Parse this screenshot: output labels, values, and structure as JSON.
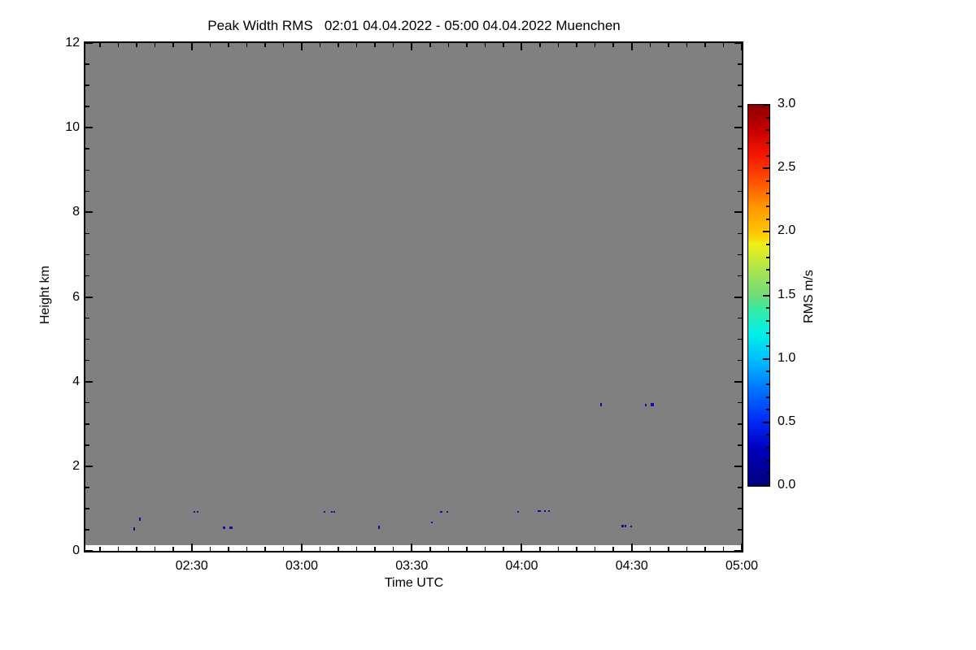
{
  "title": "Peak Width RMS   02:01 04.04.2022 - 05:00 04.04.2022 Muenchen",
  "chart_data": {
    "type": "heatmap",
    "title": "Peak Width RMS   02:01 04.04.2022 - 05:00 04.04.2022 Muenchen",
    "station": "Muenchen",
    "time_span": {
      "start": "02:01 04.04.2022",
      "end": "05:00 04.04.2022"
    },
    "xlabel": "Time UTC",
    "ylabel": "Height km",
    "x_axis": {
      "unit": "UTC time",
      "range_minutes": [
        121,
        300
      ],
      "major_ticks": [
        {
          "t_min": 150,
          "label": "02:30"
        },
        {
          "t_min": 180,
          "label": "03:00"
        },
        {
          "t_min": 210,
          "label": "03:30"
        },
        {
          "t_min": 240,
          "label": "04:00"
        },
        {
          "t_min": 270,
          "label": "04:30"
        },
        {
          "t_min": 300,
          "label": "05:00"
        }
      ],
      "minor_step_minutes": 5,
      "grid": false
    },
    "y_axis": {
      "unit": "km",
      "range": [
        0,
        12
      ],
      "major_ticks": [
        {
          "v": 0,
          "label": "0"
        },
        {
          "v": 2,
          "label": "2"
        },
        {
          "v": 4,
          "label": "4"
        },
        {
          "v": 6,
          "label": "6"
        },
        {
          "v": 8,
          "label": "8"
        },
        {
          "v": 10,
          "label": "10"
        },
        {
          "v": 12,
          "label": "12"
        }
      ],
      "minor_step": 0.5,
      "grid": false
    },
    "no_data_color": "#808080",
    "data_region_min_height_km": 0.13,
    "point_color": "#10109e",
    "point_value_mps_approx": 0.1,
    "points": [
      {
        "time": "02:14",
        "t_min": 134.3,
        "height_km": 0.51,
        "w": 2,
        "s": 4
      },
      {
        "time": "02:16",
        "t_min": 135.8,
        "height_km": 0.74,
        "w": 2,
        "s": 4
      },
      {
        "time": "02:31",
        "t_min": 150.7,
        "height_km": 0.93,
        "w": 2,
        "s": 2
      },
      {
        "time": "02:32",
        "t_min": 151.5,
        "height_km": 0.92,
        "w": 2,
        "s": 2
      },
      {
        "time": "02:39",
        "t_min": 158.8,
        "height_km": 0.55,
        "w": 3,
        "s": 3
      },
      {
        "time": "02:41",
        "t_min": 160.6,
        "height_km": 0.55,
        "w": 4,
        "s": 3
      },
      {
        "time": "03:06",
        "t_min": 186.2,
        "height_km": 0.92,
        "w": 2,
        "s": 2
      },
      {
        "time": "03:08",
        "t_min": 188.2,
        "height_km": 0.92,
        "w": 2,
        "s": 2
      },
      {
        "time": "03:09",
        "t_min": 188.9,
        "height_km": 0.92,
        "w": 2,
        "s": 2
      },
      {
        "time": "03:21",
        "t_min": 201.1,
        "height_km": 0.55,
        "w": 2,
        "s": 4
      },
      {
        "time": "03:36",
        "t_min": 215.6,
        "height_km": 0.67,
        "w": 2,
        "s": 2
      },
      {
        "time": "03:38",
        "t_min": 218.0,
        "height_km": 0.92,
        "w": 3,
        "s": 2
      },
      {
        "time": "03:40",
        "t_min": 219.7,
        "height_km": 0.92,
        "w": 2,
        "s": 2
      },
      {
        "time": "03:59",
        "t_min": 238.9,
        "height_km": 0.92,
        "w": 2,
        "s": 2
      },
      {
        "time": "04:05",
        "t_min": 244.8,
        "height_km": 0.94,
        "w": 4,
        "s": 2
      },
      {
        "time": "04:06",
        "t_min": 246.4,
        "height_km": 0.94,
        "w": 2,
        "s": 2
      },
      {
        "time": "04:07",
        "t_min": 247.4,
        "height_km": 0.94,
        "w": 2,
        "s": 2
      },
      {
        "time": "04:22",
        "t_min": 261.7,
        "height_km": 3.46,
        "w": 2,
        "s": 4
      },
      {
        "time": "04:28",
        "t_min": 267.6,
        "height_km": 0.59,
        "w": 3,
        "s": 3
      },
      {
        "time": "04:28",
        "t_min": 268.3,
        "height_km": 0.59,
        "w": 2,
        "s": 3
      },
      {
        "time": "04:30",
        "t_min": 269.9,
        "height_km": 0.57,
        "w": 2,
        "s": 2
      },
      {
        "time": "04:34",
        "t_min": 273.9,
        "height_km": 3.45,
        "w": 2,
        "s": 3
      },
      {
        "time": "04:36",
        "t_min": 275.5,
        "height_km": 3.45,
        "w": 4,
        "s": 4
      }
    ],
    "colorbar": {
      "label": "RMS m/s",
      "min": 0.0,
      "max": 3.0,
      "major_ticks": [
        {
          "v": 0.0,
          "label": "0.0"
        },
        {
          "v": 0.5,
          "label": "0.5"
        },
        {
          "v": 1.0,
          "label": "1.0"
        },
        {
          "v": 1.5,
          "label": "1.5"
        },
        {
          "v": 2.0,
          "label": "2.0"
        },
        {
          "v": 2.5,
          "label": "2.5"
        },
        {
          "v": 3.0,
          "label": "3.0"
        }
      ],
      "minor_step": 0.1,
      "gradient_stops": [
        {
          "v": 0.0,
          "color": "#000078"
        },
        {
          "v": 0.3,
          "color": "#0000c0"
        },
        {
          "v": 0.5,
          "color": "#0028f5"
        },
        {
          "v": 0.75,
          "color": "#0070ff"
        },
        {
          "v": 1.0,
          "color": "#00c0ff"
        },
        {
          "v": 1.2,
          "color": "#00f0e8"
        },
        {
          "v": 1.4,
          "color": "#3ce8a0"
        },
        {
          "v": 1.5,
          "color": "#70dc78"
        },
        {
          "v": 1.7,
          "color": "#aae44e"
        },
        {
          "v": 1.9,
          "color": "#f0ee18"
        },
        {
          "v": 2.0,
          "color": "#ffc400"
        },
        {
          "v": 2.2,
          "color": "#ff9600"
        },
        {
          "v": 2.4,
          "color": "#ff5000"
        },
        {
          "v": 2.6,
          "color": "#f51800"
        },
        {
          "v": 2.8,
          "color": "#c60000"
        },
        {
          "v": 3.0,
          "color": "#8b0000"
        }
      ]
    }
  },
  "colors": {
    "background": "#ffffff",
    "frame": "#000000",
    "no_data_gray": "#808080",
    "point_navy": "#10109e"
  }
}
